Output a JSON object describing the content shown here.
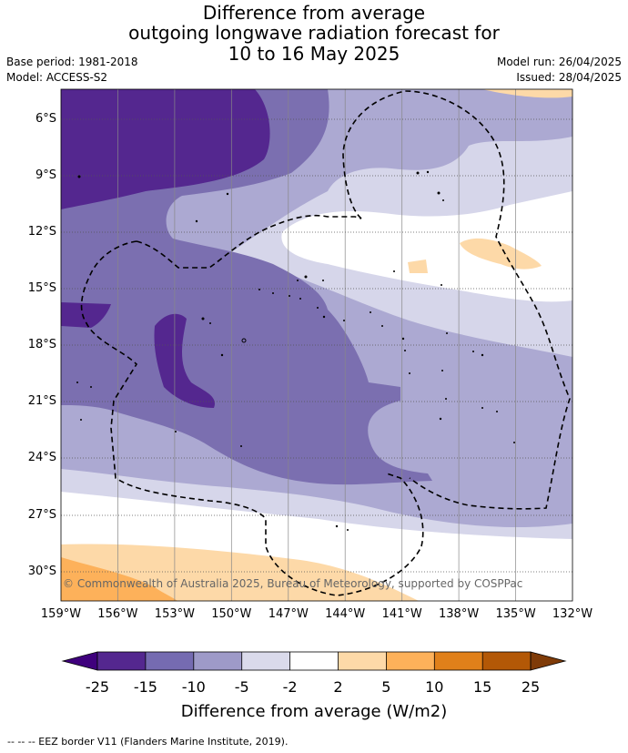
{
  "title_lines": [
    "Difference from average",
    "outgoing longwave radiation forecast for",
    "10 to 16 May 2025"
  ],
  "base_period": "Base period: 1981-2018",
  "model": "Model: ACCESS-S2",
  "model_run": "Model run: 26/04/2025",
  "issued": "Issued: 28/04/2025",
  "map": {
    "lat_labels": [
      "6°S",
      "9°S",
      "12°S",
      "15°S",
      "18°S",
      "21°S",
      "24°S",
      "27°S",
      "30°S"
    ],
    "lon_labels": [
      "159°W",
      "156°W",
      "153°W",
      "150°W",
      "147°W",
      "144°W",
      "141°W",
      "138°W",
      "135°W",
      "132°W"
    ],
    "copyright": "© Commonwealth of Australia 2025, Bureau of Meteorology, supported by COSPPac"
  },
  "colorbar": {
    "ticks": [
      "-25",
      "-15",
      "-10",
      "-5",
      "-2",
      "2",
      "5",
      "10",
      "15",
      "25"
    ],
    "colors": [
      "#3f007d",
      "#54278f",
      "#756bb1",
      "#9e9ac8",
      "#dadaeb",
      "#ffffff",
      "#fdd9a8",
      "#fdb15a",
      "#e0801a",
      "#b35806",
      "#7f3b08"
    ],
    "title": "Difference from average (W/m2)"
  },
  "eez_note": "--  --  -- EEZ border V11 (Flanders Marine Institute, 2019)."
}
